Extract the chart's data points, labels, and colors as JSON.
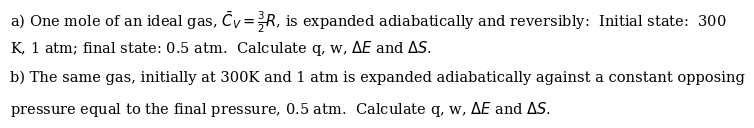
{
  "background_color": "#ffffff",
  "text_color": "#000000",
  "line_a1": "a) One mole of an ideal gas, $\\bar{C}_V = \\frac{3}{2}R$, is expanded adiabatically and reversibly:  Initial state:  300",
  "line_a2": "K, 1 atm; final state: 0.5 atm.  Calculate q, w, $\\Delta E$ and $\\Delta S$.",
  "line_b1": "b) The same gas, initially at 300K and 1 atm is expanded adiabatically against a constant opposing",
  "line_b2": "pressure equal to the final pressure, 0.5 atm.  Calculate q, w, $\\Delta E$ and $\\Delta S$.",
  "fontsize": 10.5,
  "font_family": "DejaVu Serif"
}
